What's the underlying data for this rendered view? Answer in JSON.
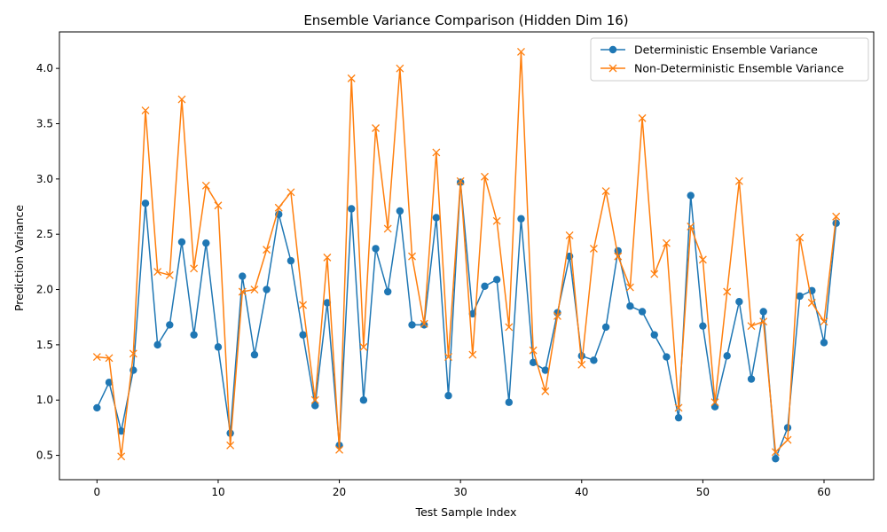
{
  "chart_data": {
    "type": "line",
    "title": "Ensemble Variance Comparison (Hidden Dim 16)",
    "xlabel": "Test Sample Index",
    "ylabel": "Prediction Variance",
    "xlim": [
      -3.1,
      64.1
    ],
    "ylim": [
      0.28,
      4.33
    ],
    "xticks": [
      0,
      10,
      20,
      30,
      40,
      50,
      60
    ],
    "yticks": [
      0.5,
      1.0,
      1.5,
      2.0,
      2.5,
      3.0,
      3.5,
      4.0
    ],
    "ytick_labels": [
      "0.5",
      "1.0",
      "1.5",
      "2.0",
      "2.5",
      "3.0",
      "3.5",
      "4.0"
    ],
    "grid": false,
    "legend_position": "top-right",
    "series": [
      {
        "name": "Deterministic Ensemble Variance",
        "color": "#1f77b4",
        "marker": "circle",
        "values": [
          0.93,
          1.16,
          0.72,
          1.27,
          2.78,
          1.5,
          1.68,
          2.43,
          1.59,
          2.42,
          1.48,
          0.7,
          2.12,
          1.41,
          2.0,
          2.68,
          2.26,
          1.59,
          0.95,
          1.88,
          0.59,
          2.73,
          1.0,
          2.37,
          1.98,
          2.71,
          1.68,
          1.68,
          2.65,
          1.04,
          2.97,
          1.78,
          2.03,
          2.09,
          0.98,
          2.64,
          1.34,
          1.27,
          1.79,
          2.3,
          1.4,
          1.36,
          1.66,
          2.35,
          1.85,
          1.8,
          1.59,
          1.39,
          0.84,
          2.85,
          1.67,
          0.94,
          1.4,
          1.89,
          1.19,
          1.8,
          0.47,
          0.75,
          1.94,
          1.99,
          1.52,
          2.6
        ]
      },
      {
        "name": "Non-Deterministic Ensemble Variance",
        "color": "#ff7f0e",
        "marker": "x",
        "values": [
          1.39,
          1.38,
          0.49,
          1.42,
          3.62,
          2.16,
          2.13,
          3.72,
          2.19,
          2.94,
          2.76,
          0.59,
          1.98,
          2.0,
          2.36,
          2.74,
          2.88,
          1.86,
          1.0,
          2.29,
          0.55,
          3.91,
          1.48,
          3.46,
          2.55,
          4.0,
          2.3,
          1.69,
          3.24,
          1.39,
          2.98,
          1.41,
          3.02,
          2.62,
          1.66,
          4.15,
          1.45,
          1.08,
          1.76,
          2.49,
          1.32,
          2.37,
          2.89,
          2.3,
          2.02,
          3.55,
          2.14,
          2.42,
          0.93,
          2.57,
          2.27,
          0.98,
          1.98,
          2.98,
          1.67,
          1.71,
          0.53,
          0.64,
          2.47,
          1.88,
          1.71,
          2.66
        ]
      }
    ]
  }
}
